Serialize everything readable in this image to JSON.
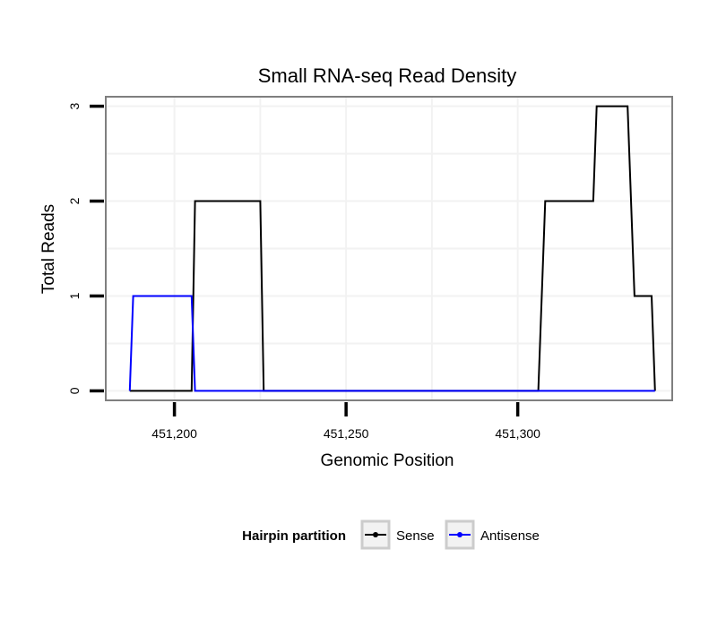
{
  "chart_data": {
    "type": "line",
    "title": "Small RNA-seq Read Density",
    "xlabel": "Genomic Position",
    "ylabel": "Total Reads",
    "xlim": [
      451180,
      451345
    ],
    "ylim": [
      -0.1,
      3.1
    ],
    "x_ticks": [
      451200,
      451250,
      451300
    ],
    "x_tick_labels": [
      "451,200",
      "451,250",
      "451,300"
    ],
    "y_ticks": [
      0,
      1,
      2,
      3
    ],
    "y_tick_labels": [
      "0",
      "1",
      "2",
      "3"
    ],
    "grid": true,
    "legend": {
      "title": "Hairpin partition",
      "position": "bottom"
    },
    "series": [
      {
        "name": "Sense",
        "color": "#000000",
        "x": [
          451187,
          451205,
          451206,
          451225,
          451226,
          451306,
          451308,
          451322,
          451323,
          451332,
          451334,
          451339,
          451340
        ],
        "y": [
          0,
          0,
          2,
          2,
          0,
          0,
          2,
          2,
          3,
          3,
          1,
          1,
          0
        ]
      },
      {
        "name": "Antisense",
        "color": "#0000ff",
        "x": [
          451187,
          451188,
          451205,
          451206,
          451340
        ],
        "y": [
          0,
          1,
          1,
          0,
          0
        ]
      }
    ]
  }
}
